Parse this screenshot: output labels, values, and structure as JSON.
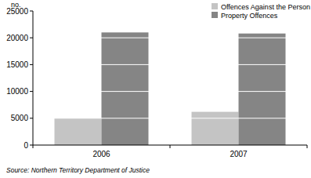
{
  "chart_data": {
    "type": "bar",
    "y_label": "no.",
    "source": "Source: Northern Territory Department of Justice",
    "categories": [
      "2006",
      "2007"
    ],
    "series": [
      {
        "name": "Offences Against the Person",
        "color": "#c4c4c4",
        "values": [
          5000,
          6200
        ]
      },
      {
        "name": "Property Offences",
        "color": "#858585",
        "values": [
          21000,
          20800
        ]
      }
    ],
    "ylim": [
      0,
      25000
    ],
    "yticks": [
      0,
      5000,
      10000,
      15000,
      20000,
      25000
    ],
    "grid": true,
    "legend": "top-right"
  }
}
